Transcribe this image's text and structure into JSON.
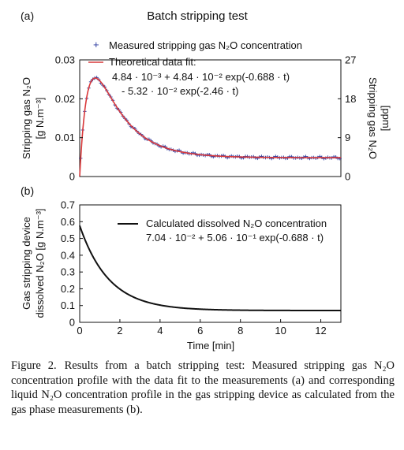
{
  "figure": {
    "title": "Batch stripping test",
    "caption_label": "Figure 2.",
    "caption_text": "Results from a batch stripping test: Measured stripping gas N₂O concentration profile with the data fit to the measurements (a) and corresponding liquid N₂O concentration profile in the gas stripping device as calculated from the gas phase measurements (b)."
  },
  "chart_data": [
    {
      "type": "scatter",
      "panel_label": "(a)",
      "title": "Batch stripping test",
      "ylabel": "Stripping gas N₂O [g N.m⁻³]",
      "ylabel_line1": "Stripping gas N₂O",
      "ylabel_line2": "[g N.m⁻³]",
      "y2label_line1": "Stripping gas N₂O",
      "y2label_line2": "[ppm]",
      "xlim": [
        0,
        13
      ],
      "ylim": [
        0,
        0.03
      ],
      "y2lim": [
        0,
        27
      ],
      "y_ticks": [
        "0",
        "0.01",
        "0.02",
        "0.03"
      ],
      "y2_ticks": [
        "0",
        "9",
        "18",
        "27"
      ],
      "legend_position": "top-center",
      "series": [
        {
          "name": "Measured stripping gas N₂O concentration",
          "kind": "markers",
          "marker": "+",
          "color": "#2b3a9e",
          "model": {
            "c": 0.00484,
            "a1": 0.0484,
            "k1": -0.688,
            "a2": -0.0532,
            "k2": -2.46
          },
          "x_range": [
            0.05,
            13
          ],
          "x_step": 0.1
        },
        {
          "name": "Theoretical data fit:",
          "kind": "line",
          "color": "#d9383a",
          "equation_line1": "4.84 · 10⁻³ + 4.84 · 10⁻² exp(-0.688 · t)",
          "equation_line2": "- 5.32 · 10⁻² exp(-2.46 · t)",
          "model": {
            "c": 0.00484,
            "a1": 0.0484,
            "k1": -0.688,
            "a2": -0.0532,
            "k2": -2.46
          }
        }
      ]
    },
    {
      "type": "line",
      "panel_label": "(b)",
      "xlabel": "Time [min]",
      "ylabel_line1": "Gas stripping device",
      "ylabel_line2": "dissolved N₂O [g N.m⁻³]",
      "xlim": [
        0,
        13
      ],
      "ylim": [
        0,
        0.7
      ],
      "x_ticks": [
        "0",
        "2",
        "4",
        "6",
        "8",
        "10",
        "12"
      ],
      "y_ticks": [
        "0",
        "0.1",
        "0.2",
        "0.3",
        "0.4",
        "0.5",
        "0.6",
        "0.7"
      ],
      "legend_position": "top-right",
      "series": [
        {
          "name": "Calculated dissolved N₂O concentration",
          "kind": "line",
          "color": "#111111",
          "equation": "7.04 · 10⁻² + 5.06 · 10⁻¹ exp(-0.688 · t)",
          "model": {
            "c": 0.0704,
            "a1": 0.506,
            "k1": -0.688
          }
        }
      ]
    }
  ]
}
